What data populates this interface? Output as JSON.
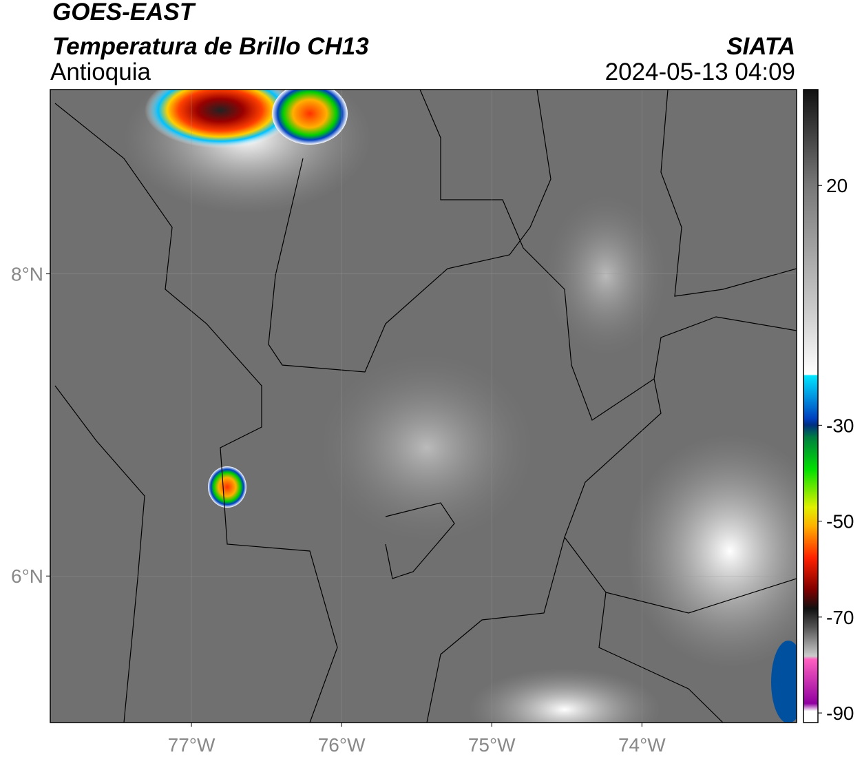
{
  "header": {
    "title": "GOES-EAST",
    "subtitle": "Temperatura de Brillo CH13",
    "region": "Antioquia",
    "source": "SIATA",
    "datetime": "2024-05-13 04:09"
  },
  "map": {
    "xlim": [
      -77.94,
      -72.97
    ],
    "ylim": [
      5.03,
      9.22
    ],
    "xticks": [
      {
        "value": -77,
        "label": "77°W"
      },
      {
        "value": -76,
        "label": "76°W"
      },
      {
        "value": -75,
        "label": "75°W"
      },
      {
        "value": -74,
        "label": "74°W"
      }
    ],
    "yticks": [
      {
        "value": 8,
        "label": "8°N"
      },
      {
        "value": 6,
        "label": "6°N"
      }
    ],
    "grid": true
  },
  "colorbar": {
    "lim": [
      -92,
      40
    ],
    "ticks": [
      20,
      -30,
      -50,
      -70,
      -90
    ]
  }
}
